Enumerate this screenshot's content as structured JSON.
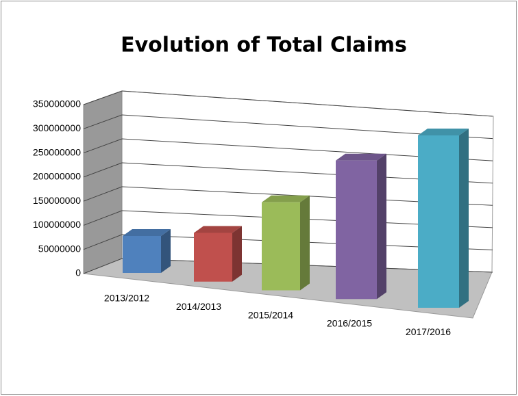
{
  "chart_data": {
    "type": "bar3d",
    "title": "Evolution of Total Claims",
    "categories": [
      "2013/2012",
      "2014/2013",
      "2015/2014",
      "2016/2015",
      "2017/2016"
    ],
    "values": [
      75000000,
      95000000,
      165000000,
      250000000,
      300000000
    ],
    "colors": [
      "#4f81bd",
      "#c0504d",
      "#9bbb59",
      "#8064a2",
      "#4bacc6"
    ],
    "ylim": [
      0,
      350000000
    ],
    "yticks": [
      0,
      50000000,
      100000000,
      150000000,
      200000000,
      250000000,
      300000000,
      350000000
    ],
    "grid": true
  }
}
